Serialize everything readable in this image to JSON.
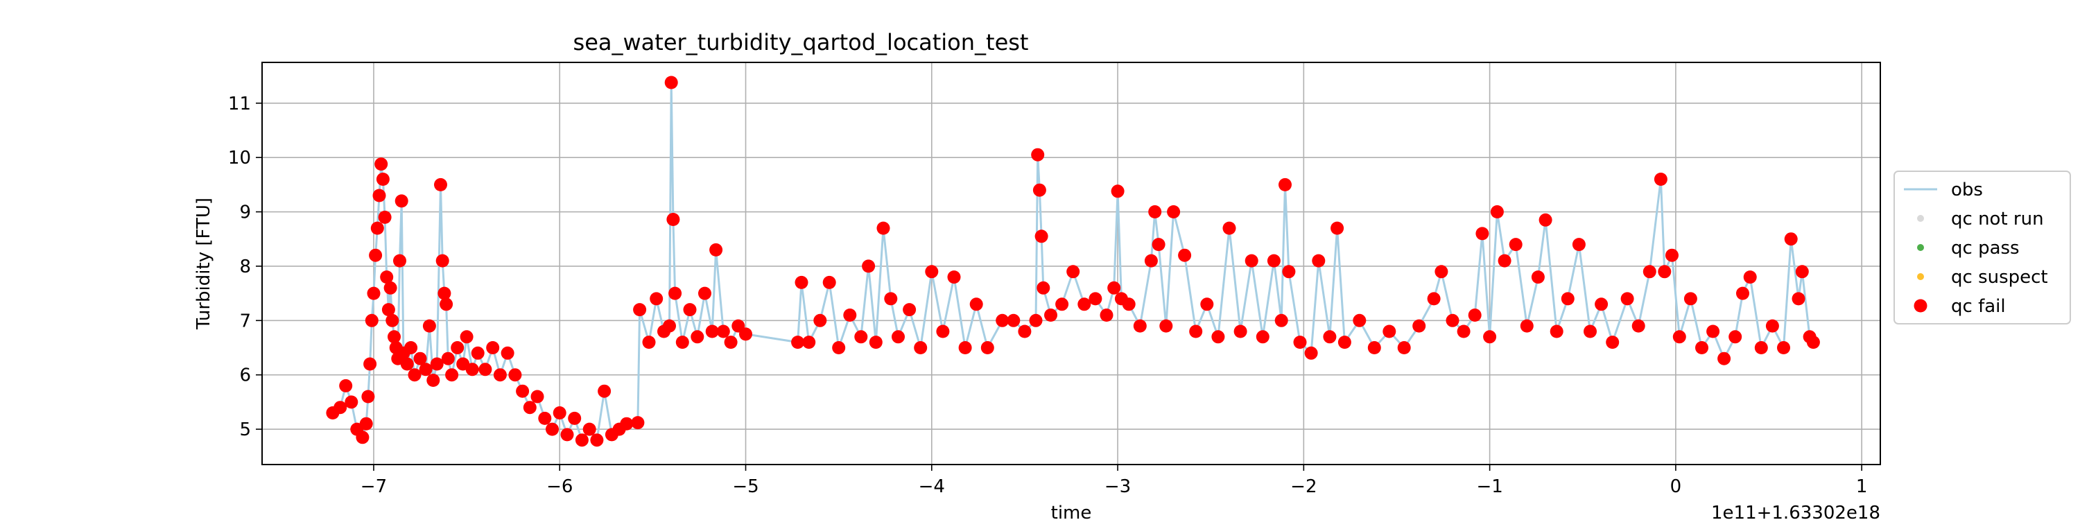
{
  "chart_data": {
    "type": "line",
    "title": "sea_water_turbidity_qartod_location_test",
    "xlabel": "time",
    "ylabel": "Turbidity [FTU]",
    "x_offset_label": "1e11+1.63302e18",
    "xlim": [
      -7.6,
      1.1
    ],
    "ylim": [
      4.35,
      11.75
    ],
    "x_ticks": [
      -7,
      -6,
      -5,
      -4,
      -3,
      -2,
      -1,
      0,
      1
    ],
    "x_tick_labels": [
      "−7",
      "−6",
      "−5",
      "−4",
      "−3",
      "−2",
      "−1",
      "0",
      "1"
    ],
    "y_ticks": [
      5,
      6,
      7,
      8,
      9,
      10,
      11
    ],
    "y_tick_labels": [
      "5",
      "6",
      "7",
      "8",
      "9",
      "10",
      "11"
    ],
    "grid": true,
    "legend_position": "center-right outside",
    "legend": [
      {
        "label": "obs",
        "kind": "line",
        "color": "#a6cee3"
      },
      {
        "label": "qc not run",
        "kind": "marker",
        "color": "#d9d9d9"
      },
      {
        "label": "qc pass",
        "kind": "marker",
        "color": "#4daf4a"
      },
      {
        "label": "qc suspect",
        "kind": "marker",
        "color": "#fdbf2d"
      },
      {
        "label": "qc fail",
        "kind": "marker",
        "color": "#ff0000"
      }
    ],
    "series": [
      {
        "name": "obs",
        "style": "line",
        "color": "#a6cee3",
        "points": [
          [
            -7.22,
            5.3
          ],
          [
            -7.18,
            5.4
          ],
          [
            -7.15,
            5.8
          ],
          [
            -7.12,
            5.5
          ],
          [
            -7.09,
            5.0
          ],
          [
            -7.06,
            4.85
          ],
          [
            -7.04,
            5.1
          ],
          [
            -7.03,
            5.6
          ],
          [
            -7.02,
            6.2
          ],
          [
            -7.01,
            7.0
          ],
          [
            -7.0,
            7.5
          ],
          [
            -6.99,
            8.2
          ],
          [
            -6.98,
            8.7
          ],
          [
            -6.97,
            9.3
          ],
          [
            -6.96,
            9.88
          ],
          [
            -6.95,
            9.6
          ],
          [
            -6.94,
            8.9
          ],
          [
            -6.93,
            7.8
          ],
          [
            -6.92,
            7.2
          ],
          [
            -6.91,
            7.6
          ],
          [
            -6.9,
            7.0
          ],
          [
            -6.89,
            6.7
          ],
          [
            -6.88,
            6.5
          ],
          [
            -6.87,
            6.3
          ],
          [
            -6.86,
            8.1
          ],
          [
            -6.85,
            9.2
          ],
          [
            -6.84,
            6.4
          ],
          [
            -6.82,
            6.2
          ],
          [
            -6.8,
            6.5
          ],
          [
            -6.78,
            6.0
          ],
          [
            -6.75,
            6.3
          ],
          [
            -6.72,
            6.1
          ],
          [
            -6.7,
            6.9
          ],
          [
            -6.68,
            5.9
          ],
          [
            -6.66,
            6.2
          ],
          [
            -6.64,
            9.5
          ],
          [
            -6.63,
            8.1
          ],
          [
            -6.62,
            7.5
          ],
          [
            -6.61,
            7.3
          ],
          [
            -6.6,
            6.3
          ],
          [
            -6.58,
            6.0
          ],
          [
            -6.55,
            6.5
          ],
          [
            -6.52,
            6.2
          ],
          [
            -6.5,
            6.7
          ],
          [
            -6.47,
            6.1
          ],
          [
            -6.44,
            6.4
          ],
          [
            -6.4,
            6.1
          ],
          [
            -6.36,
            6.5
          ],
          [
            -6.32,
            6.0
          ],
          [
            -6.28,
            6.4
          ],
          [
            -6.24,
            6.0
          ],
          [
            -6.2,
            5.7
          ],
          [
            -6.16,
            5.4
          ],
          [
            -6.12,
            5.6
          ],
          [
            -6.08,
            5.2
          ],
          [
            -6.04,
            5.0
          ],
          [
            -6.0,
            5.3
          ],
          [
            -5.96,
            4.9
          ],
          [
            -5.92,
            5.2
          ],
          [
            -5.88,
            4.8
          ],
          [
            -5.84,
            5.0
          ],
          [
            -5.8,
            4.8
          ],
          [
            -5.76,
            5.7
          ],
          [
            -5.72,
            4.9
          ],
          [
            -5.68,
            5.0
          ],
          [
            -5.64,
            5.1
          ],
          [
            -5.58,
            5.12
          ],
          [
            -5.57,
            7.2
          ],
          [
            -5.52,
            6.6
          ],
          [
            -5.48,
            7.4
          ],
          [
            -5.44,
            6.8
          ],
          [
            -5.41,
            6.9
          ],
          [
            -5.4,
            11.38
          ],
          [
            -5.39,
            8.86
          ],
          [
            -5.38,
            7.5
          ],
          [
            -5.34,
            6.6
          ],
          [
            -5.3,
            7.2
          ],
          [
            -5.26,
            6.7
          ],
          [
            -5.22,
            7.5
          ],
          [
            -5.18,
            6.8
          ],
          [
            -5.16,
            8.3
          ],
          [
            -5.12,
            6.8
          ],
          [
            -5.08,
            6.6
          ],
          [
            -5.04,
            6.9
          ],
          [
            -5.0,
            6.75
          ],
          [
            -4.72,
            6.6
          ],
          [
            -4.7,
            7.7
          ],
          [
            -4.66,
            6.6
          ],
          [
            -4.6,
            7.0
          ],
          [
            -4.55,
            7.7
          ],
          [
            -4.5,
            6.5
          ],
          [
            -4.44,
            7.1
          ],
          [
            -4.38,
            6.7
          ],
          [
            -4.34,
            8.0
          ],
          [
            -4.3,
            6.6
          ],
          [
            -4.26,
            8.7
          ],
          [
            -4.22,
            7.4
          ],
          [
            -4.18,
            6.7
          ],
          [
            -4.12,
            7.2
          ],
          [
            -4.06,
            6.5
          ],
          [
            -4.0,
            7.9
          ],
          [
            -3.94,
            6.8
          ],
          [
            -3.88,
            7.8
          ],
          [
            -3.82,
            6.5
          ],
          [
            -3.76,
            7.3
          ],
          [
            -3.7,
            6.5
          ],
          [
            -3.62,
            7.0
          ],
          [
            -3.56,
            7.0
          ],
          [
            -3.5,
            6.8
          ],
          [
            -3.44,
            7.0
          ],
          [
            -3.43,
            10.05
          ],
          [
            -3.42,
            9.4
          ],
          [
            -3.41,
            8.55
          ],
          [
            -3.4,
            7.6
          ],
          [
            -3.36,
            7.1
          ],
          [
            -3.3,
            7.3
          ],
          [
            -3.24,
            7.9
          ],
          [
            -3.18,
            7.3
          ],
          [
            -3.12,
            7.4
          ],
          [
            -3.06,
            7.1
          ],
          [
            -3.02,
            7.6
          ],
          [
            -3.0,
            9.38
          ],
          [
            -2.98,
            7.4
          ],
          [
            -2.94,
            7.3
          ],
          [
            -2.88,
            6.9
          ],
          [
            -2.82,
            8.1
          ],
          [
            -2.8,
            9.0
          ],
          [
            -2.78,
            8.4
          ],
          [
            -2.74,
            6.9
          ],
          [
            -2.7,
            9.0
          ],
          [
            -2.64,
            8.2
          ],
          [
            -2.58,
            6.8
          ],
          [
            -2.52,
            7.3
          ],
          [
            -2.46,
            6.7
          ],
          [
            -2.4,
            8.7
          ],
          [
            -2.34,
            6.8
          ],
          [
            -2.28,
            8.1
          ],
          [
            -2.22,
            6.7
          ],
          [
            -2.16,
            8.1
          ],
          [
            -2.12,
            7.0
          ],
          [
            -2.1,
            9.5
          ],
          [
            -2.08,
            7.9
          ],
          [
            -2.02,
            6.6
          ],
          [
            -1.96,
            6.4
          ],
          [
            -1.92,
            8.1
          ],
          [
            -1.86,
            6.7
          ],
          [
            -1.82,
            8.7
          ],
          [
            -1.78,
            6.6
          ],
          [
            -1.7,
            7.0
          ],
          [
            -1.62,
            6.5
          ],
          [
            -1.54,
            6.8
          ],
          [
            -1.46,
            6.5
          ],
          [
            -1.38,
            6.9
          ],
          [
            -1.3,
            7.4
          ],
          [
            -1.26,
            7.9
          ],
          [
            -1.2,
            7.0
          ],
          [
            -1.14,
            6.8
          ],
          [
            -1.08,
            7.1
          ],
          [
            -1.04,
            8.6
          ],
          [
            -1.0,
            6.7
          ],
          [
            -0.96,
            9.0
          ],
          [
            -0.92,
            8.1
          ],
          [
            -0.86,
            8.4
          ],
          [
            -0.8,
            6.9
          ],
          [
            -0.74,
            7.8
          ],
          [
            -0.7,
            8.85
          ],
          [
            -0.64,
            6.8
          ],
          [
            -0.58,
            7.4
          ],
          [
            -0.52,
            8.4
          ],
          [
            -0.46,
            6.8
          ],
          [
            -0.4,
            7.3
          ],
          [
            -0.34,
            6.6
          ],
          [
            -0.26,
            7.4
          ],
          [
            -0.2,
            6.9
          ],
          [
            -0.14,
            7.9
          ],
          [
            -0.08,
            9.6
          ],
          [
            -0.06,
            7.9
          ],
          [
            -0.02,
            8.2
          ],
          [
            0.02,
            6.7
          ],
          [
            0.08,
            7.4
          ],
          [
            0.14,
            6.5
          ],
          [
            0.2,
            6.8
          ],
          [
            0.26,
            6.3
          ],
          [
            0.32,
            6.7
          ],
          [
            0.36,
            7.5
          ],
          [
            0.4,
            7.8
          ],
          [
            0.46,
            6.5
          ],
          [
            0.52,
            6.9
          ],
          [
            0.58,
            6.5
          ],
          [
            0.62,
            8.5
          ],
          [
            0.66,
            7.4
          ],
          [
            0.68,
            7.9
          ],
          [
            0.72,
            6.7
          ],
          [
            0.74,
            6.6
          ]
        ]
      },
      {
        "name": "qc fail",
        "style": "marker",
        "color": "#ff0000",
        "points": "same as obs"
      }
    ]
  }
}
